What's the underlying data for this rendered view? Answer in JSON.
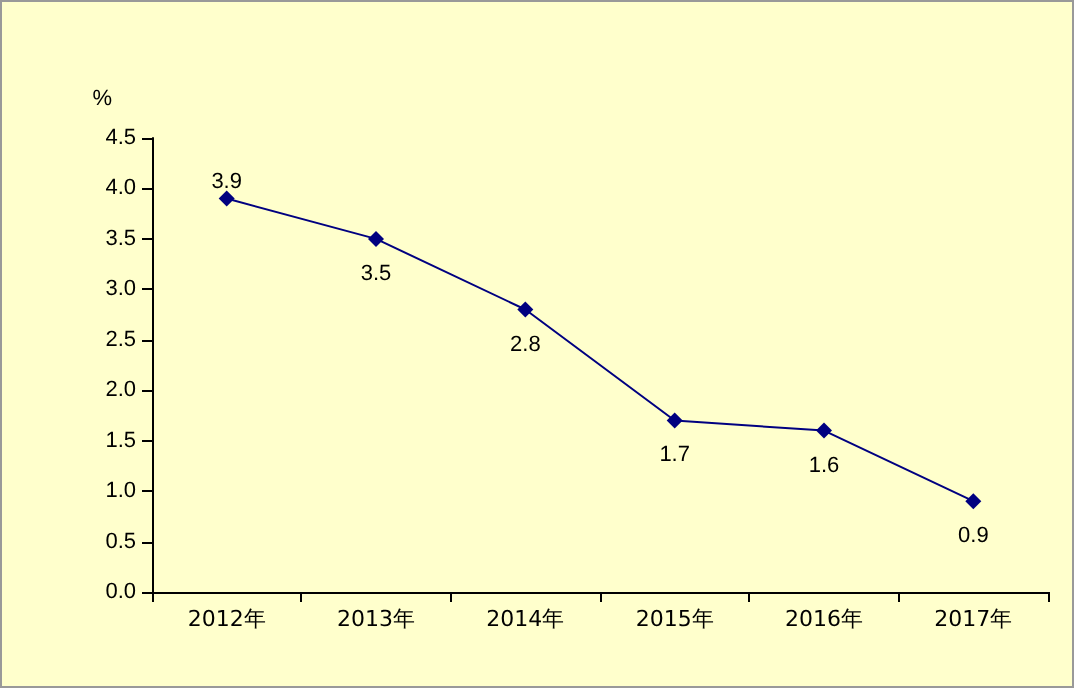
{
  "chart_data": {
    "type": "line",
    "ylabel": "%",
    "categories": [
      "2012年",
      "2013年",
      "2014年",
      "2015年",
      "2016年",
      "2017年"
    ],
    "series": [
      {
        "color": "#000080",
        "values": [
          3.9,
          3.5,
          2.8,
          1.7,
          1.6,
          0.9
        ]
      }
    ],
    "ylim": [
      0,
      4.5
    ],
    "yticks": [
      {
        "value": 0,
        "label": "0.0"
      },
      0.5,
      {
        "value": 1,
        "label": "1.0"
      },
      1.5,
      {
        "value": 2,
        "label": "2.0"
      },
      2.5,
      {
        "value": 3,
        "label": "3.0"
      },
      3.5,
      {
        "value": 4,
        "label": "4.0"
      },
      4.5
    ],
    "grid": false,
    "marker": "diamond",
    "line_style": "solid",
    "data_labels": true
  }
}
